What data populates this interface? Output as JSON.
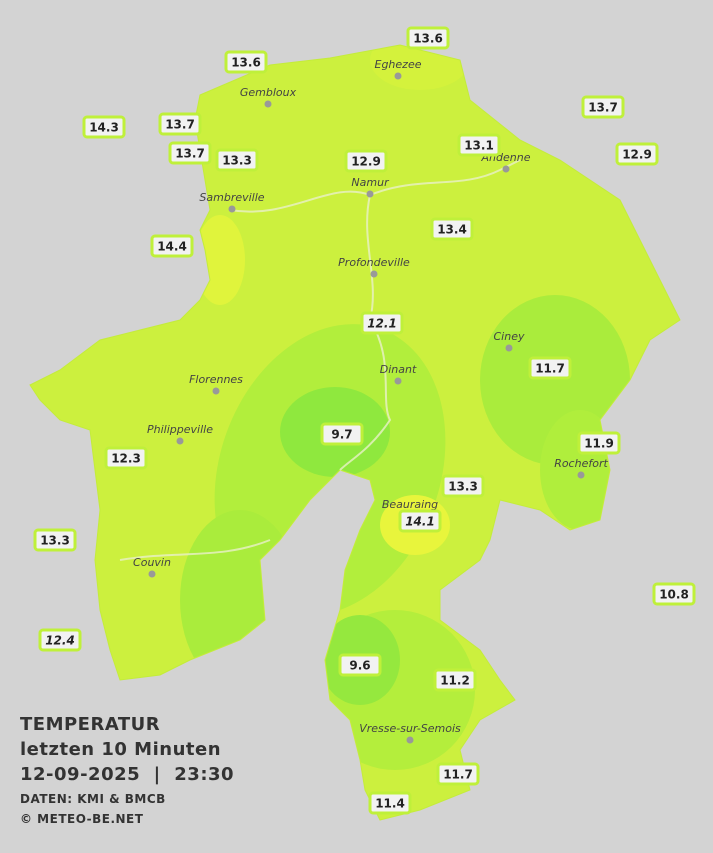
{
  "title": "TEMPERATUR",
  "subtitle": "letzten 10 Minuten",
  "timestamp": "12-09-2025  |  23:30",
  "source": "DATEN: KMI & BMCB",
  "credit": "© METEO-BE.NET",
  "stations": [
    13.6,
    13.6,
    14.3,
    13.7,
    13.7,
    13.3,
    12.9,
    13.1,
    13.7,
    12.9,
    14.4,
    13.4,
    12.1,
    11.7,
    9.7,
    11.9,
    12.3,
    13.3,
    14.1,
    13.3,
    10.8,
    12.4,
    9.6,
    11.2,
    11.7,
    11.4
  ],
  "towns": [
    "Eghezee",
    "Gembloux",
    "Andenne",
    "Namur",
    "Sambreville",
    "Profondeville",
    "Ciney",
    "Dinant",
    "Florennes",
    "Philippeville",
    "Rochefort",
    "Beauraing",
    "Couvin",
    "Vresse-sur-Semois"
  ]
}
